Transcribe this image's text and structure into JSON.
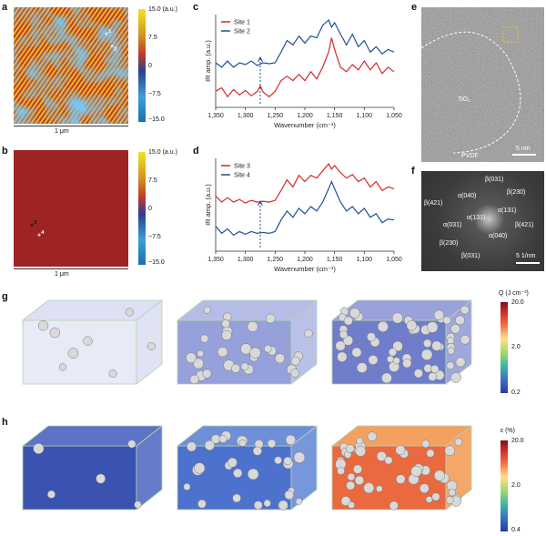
{
  "panel_letters": {
    "a": "a",
    "b": "b",
    "c": "c",
    "d": "d",
    "e": "e",
    "f": "f",
    "g": "g",
    "h": "h"
  },
  "panel_a": {
    "scalebar": "1 μm",
    "colorbar_ticks": [
      "15.0 (a.u.)",
      "7.5",
      "0",
      "−7.5",
      "−15.0"
    ],
    "markers": [
      "1",
      "2"
    ]
  },
  "panel_b": {
    "scalebar": "1 μm",
    "colorbar_ticks": [
      "15.0 (a.u.)",
      "7.5",
      "0",
      "−7.5",
      "−15.0"
    ],
    "markers": [
      "3",
      "4"
    ]
  },
  "chart_data": [
    {
      "type": "line",
      "panel": "c",
      "xlabel": "Wavenumber (cm⁻¹)",
      "ylabel": "IR amp. (a.u.)",
      "xlim": [
        1350,
        1050
      ],
      "xticks": [
        "1,350",
        "1,300",
        "1,250",
        "1,200",
        "1,150",
        "1,100",
        "1,050"
      ],
      "dashed_line_x": 1275,
      "series": [
        {
          "name": "Site 1",
          "color": "#d62728",
          "x": [
            1350,
            1340,
            1330,
            1320,
            1310,
            1300,
            1290,
            1280,
            1275,
            1270,
            1260,
            1250,
            1240,
            1230,
            1220,
            1210,
            1200,
            1190,
            1180,
            1170,
            1160,
            1155,
            1150,
            1140,
            1130,
            1120,
            1110,
            1100,
            1090,
            1080,
            1070,
            1060,
            1050
          ],
          "y": [
            0.18,
            0.22,
            0.12,
            0.2,
            0.14,
            0.19,
            0.13,
            0.18,
            0.24,
            0.17,
            0.12,
            0.18,
            0.3,
            0.35,
            0.3,
            0.37,
            0.3,
            0.4,
            0.32,
            0.45,
            0.62,
            0.78,
            0.65,
            0.45,
            0.4,
            0.48,
            0.42,
            0.52,
            0.42,
            0.5,
            0.38,
            0.45,
            0.4
          ]
        },
        {
          "name": "Site 2",
          "color": "#1f4e99",
          "x": [
            1350,
            1340,
            1330,
            1320,
            1310,
            1300,
            1290,
            1280,
            1270,
            1260,
            1250,
            1240,
            1230,
            1220,
            1210,
            1200,
            1190,
            1180,
            1170,
            1160,
            1155,
            1150,
            1140,
            1130,
            1120,
            1110,
            1100,
            1090,
            1080,
            1070,
            1060,
            1050
          ],
          "y": [
            0.5,
            0.45,
            0.52,
            0.45,
            0.5,
            0.48,
            0.52,
            0.47,
            0.5,
            0.49,
            0.5,
            0.62,
            0.75,
            0.7,
            0.8,
            0.72,
            0.8,
            0.78,
            0.92,
            0.98,
            0.9,
            0.95,
            0.82,
            0.7,
            0.82,
            0.68,
            0.75,
            0.62,
            0.68,
            0.6,
            0.65,
            0.62
          ]
        }
      ]
    },
    {
      "type": "line",
      "panel": "d",
      "xlabel": "Wavenumber (cm⁻¹)",
      "ylabel": "IR amp. (a.u.)",
      "xlim": [
        1350,
        1050
      ],
      "xticks": [
        "1,350",
        "1,300",
        "1,250",
        "1,200",
        "1,150",
        "1,100",
        "1,050"
      ],
      "dashed_line_x": 1275,
      "series": [
        {
          "name": "Site 3",
          "color": "#d62728",
          "x": [
            1350,
            1340,
            1330,
            1320,
            1310,
            1300,
            1290,
            1280,
            1270,
            1260,
            1250,
            1240,
            1230,
            1220,
            1210,
            1200,
            1190,
            1180,
            1170,
            1160,
            1155,
            1150,
            1140,
            1130,
            1120,
            1110,
            1100,
            1090,
            1080,
            1070,
            1060,
            1050
          ],
          "y": [
            0.62,
            0.55,
            0.6,
            0.55,
            0.58,
            0.54,
            0.57,
            0.55,
            0.56,
            0.55,
            0.57,
            0.68,
            0.8,
            0.72,
            0.85,
            0.78,
            0.85,
            0.82,
            0.9,
            0.98,
            0.92,
            0.96,
            0.88,
            0.82,
            0.86,
            0.78,
            0.82,
            0.72,
            0.78,
            0.68,
            0.72,
            0.7
          ]
        },
        {
          "name": "Site 4",
          "color": "#1f4e99",
          "x": [
            1350,
            1340,
            1330,
            1320,
            1310,
            1300,
            1290,
            1280,
            1270,
            1260,
            1250,
            1240,
            1230,
            1220,
            1210,
            1200,
            1190,
            1180,
            1170,
            1160,
            1155,
            1150,
            1140,
            1130,
            1120,
            1110,
            1100,
            1090,
            1080,
            1070,
            1060,
            1050
          ],
          "y": [
            0.28,
            0.2,
            0.25,
            0.18,
            0.22,
            0.19,
            0.22,
            0.2,
            0.21,
            0.2,
            0.22,
            0.35,
            0.45,
            0.38,
            0.48,
            0.42,
            0.5,
            0.45,
            0.55,
            0.7,
            0.78,
            0.7,
            0.55,
            0.45,
            0.5,
            0.42,
            0.48,
            0.38,
            0.42,
            0.32,
            0.36,
            0.35
          ]
        }
      ]
    }
  ],
  "panel_e": {
    "labels": [
      "TiO₂",
      "PVDF"
    ],
    "scalebar": "5 nm"
  },
  "panel_f": {
    "labels": [
      "β(031)",
      "β(230)",
      "β(421)",
      "α(040)",
      "α(131)",
      "α(031)",
      "β(421)",
      "α(131)",
      "α(040)",
      "β(230)",
      "β(031)"
    ],
    "scalebar": "5 1/nm"
  },
  "panel_g": {
    "colorbar_title": "Q (J cm⁻³)",
    "colorbar_ticks": [
      "20.0",
      "2.0",
      "0.2"
    ]
  },
  "panel_h": {
    "colorbar_title": "ε (%)",
    "colorbar_ticks": [
      "20.0",
      "2.0",
      "0.4"
    ]
  }
}
